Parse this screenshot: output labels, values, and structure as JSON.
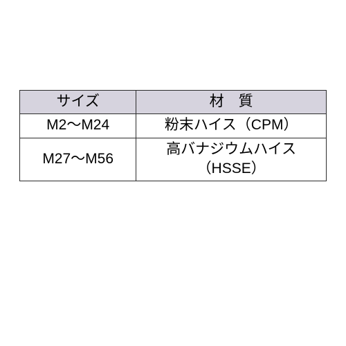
{
  "table": {
    "type": "table",
    "border_color": "#2b2b2b",
    "header_bg": "#d6d3de",
    "background_color": "#ffffff",
    "text_color": "#1a1a1a",
    "font_size_pt": 16,
    "columns": [
      {
        "key": "size",
        "label": "サイズ",
        "width_pct": 38,
        "align": "center"
      },
      {
        "key": "material",
        "label": "材　質",
        "width_pct": 62,
        "align": "center"
      }
    ],
    "rows": [
      {
        "size": "M2～M24",
        "material": "粉末ハイス（CPM）"
      },
      {
        "size": "M27～M56",
        "material": "高バナジウムハイス（HSSE）"
      }
    ]
  }
}
